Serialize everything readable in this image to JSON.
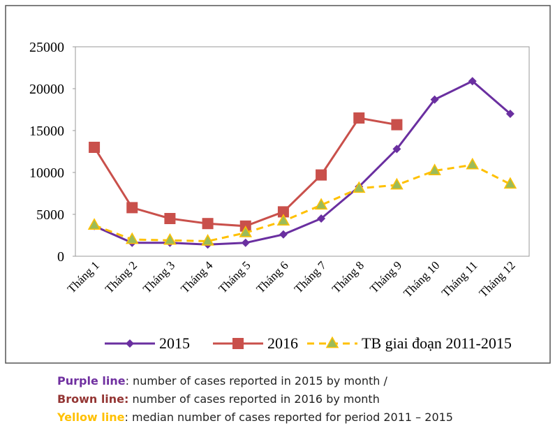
{
  "chart_data": {
    "type": "line",
    "categories": [
      "Tháng 1",
      "Tháng 2",
      "Tháng 3",
      "Tháng 4",
      "Tháng 5",
      "Tháng 6",
      "Tháng 7",
      "Tháng 8",
      "Tháng 9",
      "Tháng 10",
      "Tháng 11",
      "Tháng 12"
    ],
    "series": [
      {
        "name": "2015",
        "color": "#6a2fa0",
        "marker": "diamond",
        "dash": false,
        "values": [
          3600,
          1600,
          1600,
          1400,
          1600,
          2600,
          4500,
          8300,
          12800,
          18700,
          20900,
          17000
        ]
      },
      {
        "name": "2016",
        "color": "#c9504b",
        "marker": "square",
        "dash": false,
        "values": [
          13000,
          5800,
          4500,
          3900,
          3600,
          5300,
          9700,
          16500,
          15700,
          null,
          null,
          null
        ]
      },
      {
        "name": "TB giai đoạn 2011-2015",
        "color": "#ffc000",
        "marker": "triangle",
        "dash": true,
        "values": [
          3700,
          2000,
          1900,
          1800,
          2800,
          4200,
          6100,
          8100,
          8500,
          10200,
          10900,
          8600
        ]
      }
    ],
    "ylim": [
      0,
      25000
    ],
    "yticks": [
      0,
      5000,
      10000,
      15000,
      20000,
      25000
    ],
    "grid": false,
    "legend": "bottom"
  },
  "caption": [
    {
      "label": "Purple line",
      "text": ": number of cases reported in 2015 by month /",
      "color": "#7030a0"
    },
    {
      "label": "Brown line:",
      "text": " number of cases reported in 2016 by month",
      "color": "#943634"
    },
    {
      "label": "Yellow line",
      "text": ": median number of cases reported for period 2011 – 2015",
      "color": "#ffc000"
    }
  ]
}
